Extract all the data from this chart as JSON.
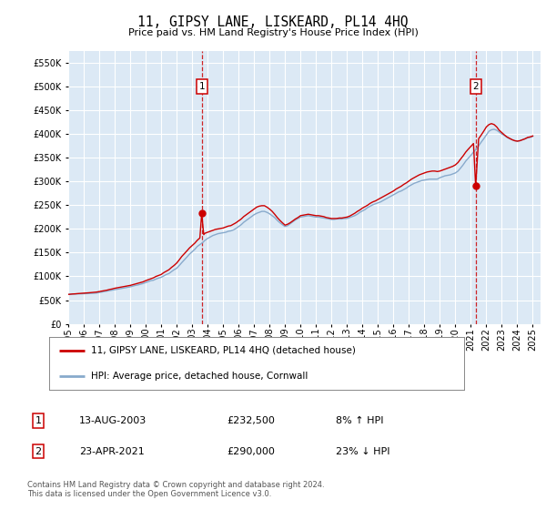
{
  "title": "11, GIPSY LANE, LISKEARD, PL14 4HQ",
  "subtitle": "Price paid vs. HM Land Registry's House Price Index (HPI)",
  "yticks": [
    0,
    50000,
    100000,
    150000,
    200000,
    250000,
    300000,
    350000,
    400000,
    450000,
    500000,
    550000
  ],
  "ylim": [
    0,
    575000
  ],
  "xlim_start": 1995.0,
  "xlim_end": 2025.5,
  "plot_bg_color": "#dce9f5",
  "outer_bg_color": "#ffffff",
  "grid_color": "#ffffff",
  "sale1_date": 2003.617,
  "sale1_price": 232500,
  "sale2_date": 2021.31,
  "sale2_price": 290000,
  "line_red_color": "#cc0000",
  "line_blue_color": "#88aacc",
  "legend_label_red": "11, GIPSY LANE, LISKEARD, PL14 4HQ (detached house)",
  "legend_label_blue": "HPI: Average price, detached house, Cornwall",
  "footer_text": "Contains HM Land Registry data © Crown copyright and database right 2024.\nThis data is licensed under the Open Government Licence v3.0.",
  "table_rows": [
    {
      "label": "1",
      "date": "13-AUG-2003",
      "price": "£232,500",
      "hpi": "8% ↑ HPI"
    },
    {
      "label": "2",
      "date": "23-APR-2021",
      "price": "£290,000",
      "hpi": "23% ↓ HPI"
    }
  ],
  "hpi_data": [
    [
      1995.0,
      62000
    ],
    [
      1995.08,
      62200
    ],
    [
      1995.17,
      62400
    ],
    [
      1995.25,
      62600
    ],
    [
      1995.33,
      62700
    ],
    [
      1995.42,
      62800
    ],
    [
      1995.5,
      63000
    ],
    [
      1995.58,
      63100
    ],
    [
      1995.67,
      63200
    ],
    [
      1995.75,
      63300
    ],
    [
      1995.83,
      63400
    ],
    [
      1995.92,
      63450
    ],
    [
      1996.0,
      63500
    ],
    [
      1996.17,
      63700
    ],
    [
      1996.33,
      64000
    ],
    [
      1996.5,
      64200
    ],
    [
      1996.67,
      64500
    ],
    [
      1996.83,
      65000
    ],
    [
      1997.0,
      66000
    ],
    [
      1997.17,
      67000
    ],
    [
      1997.33,
      68000
    ],
    [
      1997.5,
      69000
    ],
    [
      1997.67,
      70000
    ],
    [
      1997.83,
      71000
    ],
    [
      1998.0,
      72000
    ],
    [
      1998.17,
      73000
    ],
    [
      1998.33,
      74000
    ],
    [
      1998.5,
      75000
    ],
    [
      1998.67,
      76000
    ],
    [
      1998.83,
      77000
    ],
    [
      1999.0,
      78000
    ],
    [
      1999.17,
      79500
    ],
    [
      1999.33,
      81000
    ],
    [
      1999.5,
      82000
    ],
    [
      1999.67,
      83500
    ],
    [
      1999.83,
      85000
    ],
    [
      2000.0,
      87000
    ],
    [
      2000.17,
      89000
    ],
    [
      2000.33,
      91000
    ],
    [
      2000.5,
      92000
    ],
    [
      2000.67,
      94500
    ],
    [
      2000.83,
      96500
    ],
    [
      2001.0,
      98000
    ],
    [
      2001.17,
      101000
    ],
    [
      2001.33,
      104000
    ],
    [
      2001.5,
      106000
    ],
    [
      2001.67,
      110000
    ],
    [
      2001.83,
      114000
    ],
    [
      2002.0,
      117000
    ],
    [
      2002.17,
      123000
    ],
    [
      2002.33,
      129000
    ],
    [
      2002.5,
      135000
    ],
    [
      2002.67,
      141000
    ],
    [
      2002.83,
      147000
    ],
    [
      2003.0,
      152000
    ],
    [
      2003.17,
      157000
    ],
    [
      2003.33,
      163000
    ],
    [
      2003.5,
      167000
    ],
    [
      2003.67,
      171000
    ],
    [
      2003.83,
      176000
    ],
    [
      2004.0,
      180000
    ],
    [
      2004.17,
      183000
    ],
    [
      2004.33,
      186000
    ],
    [
      2004.5,
      188000
    ],
    [
      2004.67,
      190000
    ],
    [
      2004.83,
      191000
    ],
    [
      2005.0,
      192000
    ],
    [
      2005.17,
      193000
    ],
    [
      2005.33,
      195000
    ],
    [
      2005.5,
      196000
    ],
    [
      2005.67,
      198000
    ],
    [
      2005.83,
      201000
    ],
    [
      2006.0,
      205000
    ],
    [
      2006.17,
      209000
    ],
    [
      2006.33,
      214000
    ],
    [
      2006.5,
      218000
    ],
    [
      2006.67,
      222000
    ],
    [
      2006.83,
      226000
    ],
    [
      2007.0,
      230000
    ],
    [
      2007.17,
      233000
    ],
    [
      2007.33,
      235000
    ],
    [
      2007.5,
      237000
    ],
    [
      2007.67,
      237000
    ],
    [
      2007.83,
      235000
    ],
    [
      2008.0,
      232000
    ],
    [
      2008.17,
      228000
    ],
    [
      2008.33,
      224000
    ],
    [
      2008.5,
      218000
    ],
    [
      2008.67,
      213000
    ],
    [
      2008.83,
      209000
    ],
    [
      2009.0,
      205000
    ],
    [
      2009.17,
      207000
    ],
    [
      2009.33,
      211000
    ],
    [
      2009.5,
      215000
    ],
    [
      2009.67,
      219000
    ],
    [
      2009.83,
      222000
    ],
    [
      2010.0,
      225000
    ],
    [
      2010.17,
      226000
    ],
    [
      2010.33,
      227000
    ],
    [
      2010.5,
      228000
    ],
    [
      2010.67,
      227000
    ],
    [
      2010.83,
      226000
    ],
    [
      2011.0,
      225000
    ],
    [
      2011.17,
      225000
    ],
    [
      2011.33,
      224000
    ],
    [
      2011.5,
      223000
    ],
    [
      2011.67,
      222000
    ],
    [
      2011.83,
      221000
    ],
    [
      2012.0,
      220000
    ],
    [
      2012.17,
      220000
    ],
    [
      2012.33,
      221000
    ],
    [
      2012.5,
      221000
    ],
    [
      2012.67,
      221000
    ],
    [
      2012.83,
      222000
    ],
    [
      2013.0,
      222000
    ],
    [
      2013.17,
      224000
    ],
    [
      2013.33,
      226000
    ],
    [
      2013.5,
      228000
    ],
    [
      2013.67,
      231000
    ],
    [
      2013.83,
      235000
    ],
    [
      2014.0,
      238000
    ],
    [
      2014.17,
      241000
    ],
    [
      2014.33,
      245000
    ],
    [
      2014.5,
      248000
    ],
    [
      2014.67,
      251000
    ],
    [
      2014.83,
      253000
    ],
    [
      2015.0,
      255000
    ],
    [
      2015.17,
      257000
    ],
    [
      2015.33,
      260000
    ],
    [
      2015.5,
      263000
    ],
    [
      2015.67,
      266000
    ],
    [
      2015.83,
      269000
    ],
    [
      2016.0,
      272000
    ],
    [
      2016.17,
      275000
    ],
    [
      2016.33,
      278000
    ],
    [
      2016.5,
      280000
    ],
    [
      2016.67,
      283000
    ],
    [
      2016.83,
      286000
    ],
    [
      2017.0,
      290000
    ],
    [
      2017.17,
      293000
    ],
    [
      2017.33,
      296000
    ],
    [
      2017.5,
      298000
    ],
    [
      2017.67,
      300000
    ],
    [
      2017.83,
      302000
    ],
    [
      2018.0,
      303000
    ],
    [
      2018.17,
      304000
    ],
    [
      2018.33,
      305000
    ],
    [
      2018.5,
      305000
    ],
    [
      2018.67,
      305000
    ],
    [
      2018.83,
      305000
    ],
    [
      2019.0,
      308000
    ],
    [
      2019.17,
      310000
    ],
    [
      2019.33,
      312000
    ],
    [
      2019.5,
      313000
    ],
    [
      2019.67,
      314000
    ],
    [
      2019.83,
      316000
    ],
    [
      2020.0,
      318000
    ],
    [
      2020.17,
      322000
    ],
    [
      2020.33,
      328000
    ],
    [
      2020.5,
      335000
    ],
    [
      2020.67,
      343000
    ],
    [
      2020.83,
      349000
    ],
    [
      2021.0,
      355000
    ],
    [
      2021.17,
      362000
    ],
    [
      2021.33,
      368000
    ],
    [
      2021.5,
      375000
    ],
    [
      2021.67,
      383000
    ],
    [
      2021.83,
      390000
    ],
    [
      2022.0,
      398000
    ],
    [
      2022.17,
      406000
    ],
    [
      2022.33,
      409000
    ],
    [
      2022.5,
      410000
    ],
    [
      2022.67,
      408000
    ],
    [
      2022.83,
      404000
    ],
    [
      2023.0,
      400000
    ],
    [
      2023.17,
      397000
    ],
    [
      2023.33,
      393000
    ],
    [
      2023.5,
      390000
    ],
    [
      2023.67,
      388000
    ],
    [
      2023.83,
      386000
    ],
    [
      2024.0,
      385000
    ],
    [
      2024.17,
      386000
    ],
    [
      2024.33,
      388000
    ],
    [
      2024.5,
      390000
    ],
    [
      2024.67,
      392000
    ],
    [
      2024.83,
      393000
    ],
    [
      2025.0,
      395000
    ]
  ],
  "price_paid_data": [
    [
      1995.0,
      62000
    ],
    [
      1995.08,
      62300
    ],
    [
      1995.17,
      62600
    ],
    [
      1995.25,
      62900
    ],
    [
      1995.33,
      63000
    ],
    [
      1995.42,
      63200
    ],
    [
      1995.5,
      63500
    ],
    [
      1995.58,
      63700
    ],
    [
      1995.67,
      63900
    ],
    [
      1995.75,
      64100
    ],
    [
      1995.83,
      64200
    ],
    [
      1995.92,
      64400
    ],
    [
      1996.0,
      64500
    ],
    [
      1996.17,
      65000
    ],
    [
      1996.33,
      65500
    ],
    [
      1996.5,
      66000
    ],
    [
      1996.67,
      66500
    ],
    [
      1996.83,
      67000
    ],
    [
      1997.0,
      68000
    ],
    [
      1997.17,
      69000
    ],
    [
      1997.33,
      70000
    ],
    [
      1997.5,
      71000
    ],
    [
      1997.67,
      72500
    ],
    [
      1997.83,
      73500
    ],
    [
      1998.0,
      75000
    ],
    [
      1998.17,
      76000
    ],
    [
      1998.33,
      77000
    ],
    [
      1998.5,
      78000
    ],
    [
      1998.67,
      79000
    ],
    [
      1998.83,
      80000
    ],
    [
      1999.0,
      81000
    ],
    [
      1999.17,
      82500
    ],
    [
      1999.33,
      84000
    ],
    [
      1999.5,
      85500
    ],
    [
      1999.67,
      87000
    ],
    [
      1999.83,
      88500
    ],
    [
      2000.0,
      91000
    ],
    [
      2000.17,
      93000
    ],
    [
      2000.33,
      95000
    ],
    [
      2000.5,
      97000
    ],
    [
      2000.67,
      100000
    ],
    [
      2000.83,
      102000
    ],
    [
      2001.0,
      104000
    ],
    [
      2001.17,
      108000
    ],
    [
      2001.33,
      111000
    ],
    [
      2001.5,
      114000
    ],
    [
      2001.67,
      119000
    ],
    [
      2001.83,
      123000
    ],
    [
      2002.0,
      128000
    ],
    [
      2002.17,
      135000
    ],
    [
      2002.33,
      142000
    ],
    [
      2002.5,
      148000
    ],
    [
      2002.67,
      154000
    ],
    [
      2002.83,
      160000
    ],
    [
      2003.0,
      165000
    ],
    [
      2003.17,
      170000
    ],
    [
      2003.33,
      176000
    ],
    [
      2003.5,
      181000
    ],
    [
      2003.617,
      232500
    ],
    [
      2003.75,
      188000
    ],
    [
      2003.83,
      191000
    ],
    [
      2004.0,
      193000
    ],
    [
      2004.17,
      195000
    ],
    [
      2004.33,
      197000
    ],
    [
      2004.5,
      199000
    ],
    [
      2004.67,
      200000
    ],
    [
      2004.83,
      201000
    ],
    [
      2005.0,
      202000
    ],
    [
      2005.17,
      204000
    ],
    [
      2005.33,
      206000
    ],
    [
      2005.5,
      207000
    ],
    [
      2005.67,
      210000
    ],
    [
      2005.83,
      213000
    ],
    [
      2006.0,
      217000
    ],
    [
      2006.17,
      221000
    ],
    [
      2006.33,
      226000
    ],
    [
      2006.5,
      230000
    ],
    [
      2006.67,
      234000
    ],
    [
      2006.83,
      238000
    ],
    [
      2007.0,
      242000
    ],
    [
      2007.17,
      246000
    ],
    [
      2007.33,
      248000
    ],
    [
      2007.5,
      249000
    ],
    [
      2007.67,
      249000
    ],
    [
      2007.83,
      246000
    ],
    [
      2008.0,
      242000
    ],
    [
      2008.17,
      237000
    ],
    [
      2008.33,
      231000
    ],
    [
      2008.5,
      224000
    ],
    [
      2008.67,
      218000
    ],
    [
      2008.83,
      213000
    ],
    [
      2009.0,
      208000
    ],
    [
      2009.17,
      210000
    ],
    [
      2009.33,
      213000
    ],
    [
      2009.5,
      217000
    ],
    [
      2009.67,
      221000
    ],
    [
      2009.83,
      224000
    ],
    [
      2010.0,
      228000
    ],
    [
      2010.17,
      229000
    ],
    [
      2010.33,
      230000
    ],
    [
      2010.5,
      231000
    ],
    [
      2010.67,
      230000
    ],
    [
      2010.83,
      229000
    ],
    [
      2011.0,
      228000
    ],
    [
      2011.17,
      228000
    ],
    [
      2011.33,
      227000
    ],
    [
      2011.5,
      226000
    ],
    [
      2011.67,
      224000
    ],
    [
      2011.83,
      223000
    ],
    [
      2012.0,
      222000
    ],
    [
      2012.17,
      222000
    ],
    [
      2012.33,
      222000
    ],
    [
      2012.5,
      223000
    ],
    [
      2012.67,
      223000
    ],
    [
      2012.83,
      224000
    ],
    [
      2013.0,
      225000
    ],
    [
      2013.17,
      227000
    ],
    [
      2013.33,
      230000
    ],
    [
      2013.5,
      233000
    ],
    [
      2013.67,
      237000
    ],
    [
      2013.83,
      240000
    ],
    [
      2014.0,
      244000
    ],
    [
      2014.17,
      247000
    ],
    [
      2014.33,
      250000
    ],
    [
      2014.5,
      254000
    ],
    [
      2014.67,
      257000
    ],
    [
      2014.83,
      259000
    ],
    [
      2015.0,
      262000
    ],
    [
      2015.17,
      265000
    ],
    [
      2015.33,
      268000
    ],
    [
      2015.5,
      271000
    ],
    [
      2015.67,
      274000
    ],
    [
      2015.83,
      277000
    ],
    [
      2016.0,
      280000
    ],
    [
      2016.17,
      284000
    ],
    [
      2016.33,
      287000
    ],
    [
      2016.5,
      290000
    ],
    [
      2016.67,
      294000
    ],
    [
      2016.83,
      297000
    ],
    [
      2017.0,
      301000
    ],
    [
      2017.17,
      305000
    ],
    [
      2017.33,
      308000
    ],
    [
      2017.5,
      311000
    ],
    [
      2017.67,
      314000
    ],
    [
      2017.83,
      316000
    ],
    [
      2018.0,
      318000
    ],
    [
      2018.17,
      320000
    ],
    [
      2018.33,
      321000
    ],
    [
      2018.5,
      322000
    ],
    [
      2018.67,
      322000
    ],
    [
      2018.83,
      321000
    ],
    [
      2019.0,
      322000
    ],
    [
      2019.17,
      324000
    ],
    [
      2019.33,
      326000
    ],
    [
      2019.5,
      328000
    ],
    [
      2019.67,
      330000
    ],
    [
      2019.83,
      332000
    ],
    [
      2020.0,
      335000
    ],
    [
      2020.17,
      340000
    ],
    [
      2020.33,
      347000
    ],
    [
      2020.5,
      354000
    ],
    [
      2020.67,
      362000
    ],
    [
      2020.83,
      368000
    ],
    [
      2021.0,
      374000
    ],
    [
      2021.17,
      380000
    ],
    [
      2021.31,
      290000
    ],
    [
      2021.5,
      390000
    ],
    [
      2021.67,
      398000
    ],
    [
      2021.83,
      406000
    ],
    [
      2022.0,
      415000
    ],
    [
      2022.17,
      420000
    ],
    [
      2022.33,
      422000
    ],
    [
      2022.5,
      420000
    ],
    [
      2022.67,
      415000
    ],
    [
      2022.83,
      408000
    ],
    [
      2023.0,
      403000
    ],
    [
      2023.17,
      398000
    ],
    [
      2023.33,
      394000
    ],
    [
      2023.5,
      391000
    ],
    [
      2023.67,
      388000
    ],
    [
      2023.83,
      386000
    ],
    [
      2024.0,
      385000
    ],
    [
      2024.17,
      386000
    ],
    [
      2024.33,
      388000
    ],
    [
      2024.5,
      390000
    ],
    [
      2024.67,
      393000
    ],
    [
      2024.83,
      394000
    ],
    [
      2025.0,
      396000
    ]
  ]
}
